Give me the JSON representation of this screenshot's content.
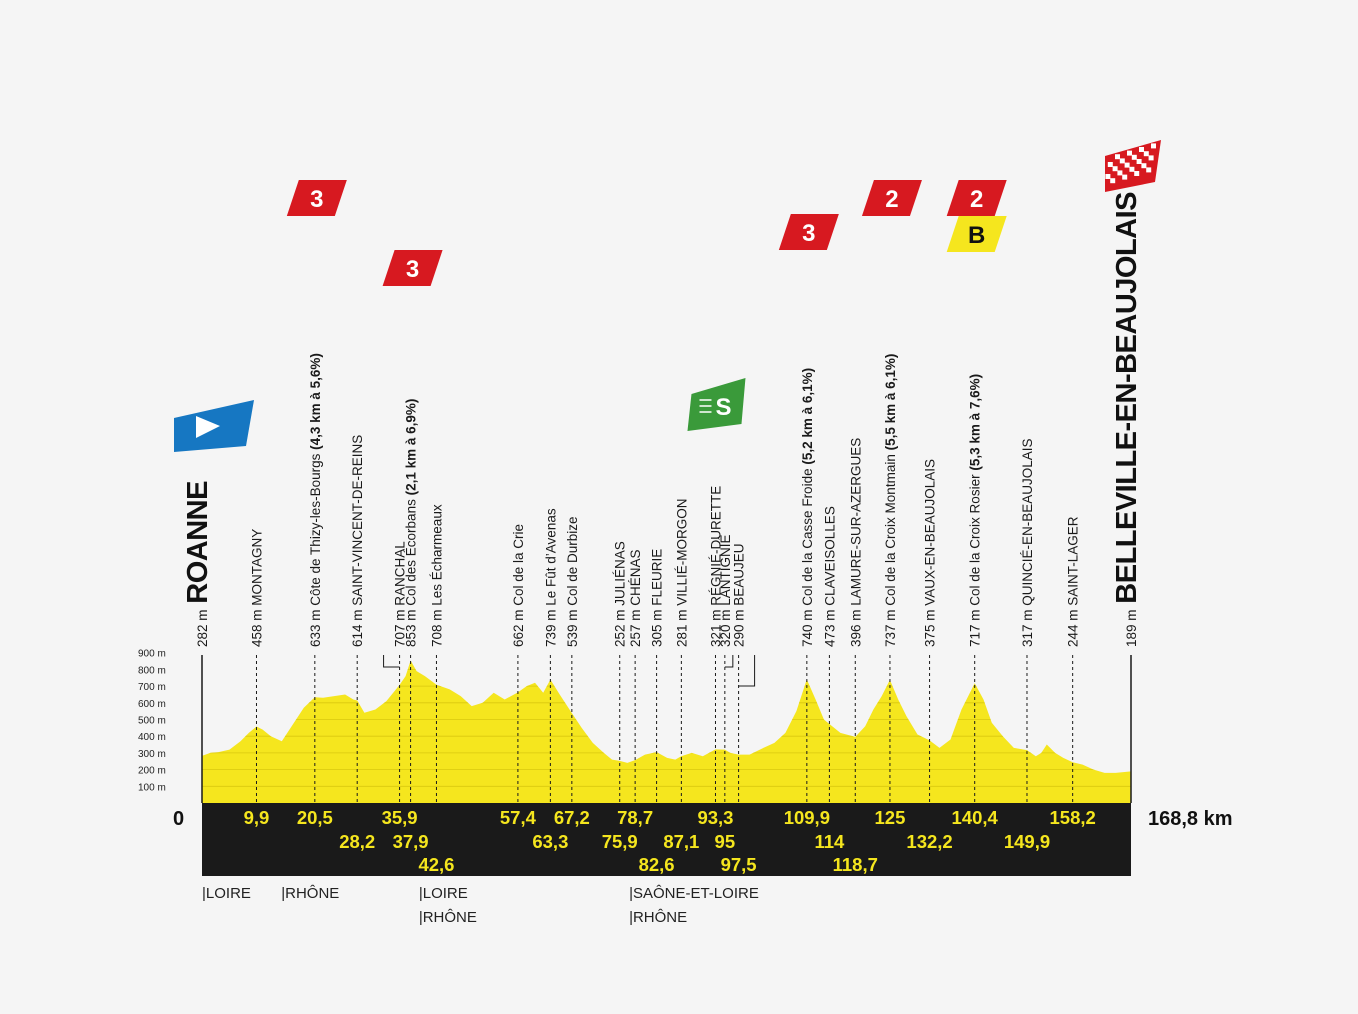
{
  "chart_data": {
    "type": "area",
    "title": "",
    "xlabel": "",
    "ylabel": "",
    "total_distance_label": "168,8 km",
    "zero_label": "0",
    "x_range_km": [
      0,
      168.8
    ],
    "ylim_m": [
      0,
      900
    ],
    "y_ticks": [
      "100 m",
      "200 m",
      "300 m",
      "400 m",
      "500 m",
      "600 m",
      "700 m",
      "800 m",
      "900 m"
    ],
    "fill_color": "#f5e61e",
    "profile": {
      "x": [
        0,
        1.5,
        3,
        5,
        7,
        8.5,
        9.9,
        11,
        12.5,
        14.5,
        16.5,
        18.5,
        20.5,
        22,
        24,
        26,
        27.5,
        28.2,
        29.5,
        31.5,
        33.5,
        35.9,
        37,
        37.9,
        39,
        40.5,
        42.6,
        45,
        47,
        49,
        51,
        53,
        55,
        57.4,
        59,
        60.5,
        62,
        63.3,
        65,
        67.2,
        69,
        71,
        73,
        74.5,
        75.9,
        77.3,
        78.7,
        80.5,
        82.6,
        84.5,
        86,
        87.1,
        89,
        91,
        93.3,
        95,
        96,
        97.5,
        99.5,
        102,
        104,
        106,
        108,
        109.9,
        111.5,
        113,
        114,
        116,
        118.7,
        120.5,
        122,
        123.5,
        125,
        126.5,
        128,
        130,
        132.2,
        134,
        136,
        138,
        140.4,
        142,
        143.5,
        145.5,
        147.5,
        149.9,
        151.5,
        152.5,
        153.5,
        155,
        156.5,
        158.2,
        160,
        162,
        164,
        166,
        168.8
      ],
      "elevation": [
        282,
        300,
        305,
        320,
        370,
        420,
        458,
        440,
        400,
        370,
        470,
        570,
        633,
        630,
        640,
        650,
        620,
        614,
        540,
        560,
        610,
        707,
        760,
        853,
        790,
        760,
        708,
        680,
        640,
        580,
        600,
        660,
        620,
        662,
        700,
        720,
        660,
        739,
        650,
        539,
        450,
        360,
        300,
        260,
        252,
        240,
        257,
        290,
        305,
        270,
        260,
        281,
        300,
        280,
        321,
        320,
        300,
        290,
        290,
        330,
        360,
        420,
        550,
        740,
        620,
        500,
        473,
        420,
        396,
        460,
        560,
        640,
        737,
        620,
        520,
        410,
        375,
        330,
        380,
        560,
        717,
        620,
        480,
        400,
        330,
        317,
        280,
        300,
        350,
        300,
        270,
        244,
        230,
        200,
        180,
        180,
        189
      ]
    },
    "points": [
      {
        "km": "",
        "label": "282 m ",
        "name": "ROANNE",
        "bold": true
      },
      {
        "km": "9,9",
        "label": "458 m MONTAGNY"
      },
      {
        "km": "20,5",
        "label": "633 m Côte de Thizy-les-Bourgs ",
        "extra": "(4,3 km à 5,6%)"
      },
      {
        "km": "28,2",
        "label": "614 m SAINT-VINCENT-DE-REINS"
      },
      {
        "km": "35,9",
        "label": "707 m RANCHAL"
      },
      {
        "km": "37,9",
        "label": "853 m Col des Écorbans ",
        "extra": "(2,1 km à 6,9%)"
      },
      {
        "km": "42,6",
        "label": "708 m Les Écharmeaux"
      },
      {
        "km": "57,4",
        "label": "662 m Col de la Crie"
      },
      {
        "km": "63,3",
        "label": "739 m Le Fût d’Avenas"
      },
      {
        "km": "67,2",
        "label": "539 m Col de Durbize"
      },
      {
        "km": "75,9",
        "label": "252 m JULIÉNAS"
      },
      {
        "km": "78,7",
        "label": "257 m CHÉNAS"
      },
      {
        "km": "82,6",
        "label": "305 m FLEURIE"
      },
      {
        "km": "87,1",
        "label": "281 m VILLIÉ-MORGON"
      },
      {
        "km": "93,3",
        "label": "321 m RÉGNIÉ-DURETTE"
      },
      {
        "km": "95",
        "label": "320 m LANTIGNIÉ"
      },
      {
        "km": "97,5",
        "label": "290 m BEAUJEU"
      },
      {
        "km": "109,9",
        "label": "740 m Col de la Casse Froide ",
        "extra": "(5,2 km à 6,1%)"
      },
      {
        "km": "114",
        "label": "473 m CLAVEISOLLES"
      },
      {
        "km": "118,7",
        "label": "396 m LAMURE-SUR-AZERGUES"
      },
      {
        "km": "125",
        "label": "737 m Col de la Croix Montmain ",
        "extra": "(5,5 km à 6,1%)"
      },
      {
        "km": "132,2",
        "label": "375 m VAUX-EN-BEAUJOLAIS"
      },
      {
        "km": "140,4",
        "label": "717 m Col de la Croix Rosier ",
        "extra": "(5,3 km à 7,6%)"
      },
      {
        "km": "149,9",
        "label": "317 m QUINCIÉ-EN-BEAUJOLAIS"
      },
      {
        "km": "158,2",
        "label": "244 m SAINT-LAGER"
      },
      {
        "km": "",
        "label": "189 m ",
        "name": "BELLEVILLE-EN-BEAUJOLAIS",
        "bold": true
      }
    ],
    "climb_badges": [
      {
        "text": "3",
        "color": "#d71920",
        "km": 20.5
      },
      {
        "text": "3",
        "color": "#d71920",
        "km": 37.9
      },
      {
        "text": "3",
        "color": "#d71920",
        "km": 109.9
      },
      {
        "text": "2",
        "color": "#d71920",
        "km": 125
      },
      {
        "text": "2",
        "color": "#d71920",
        "km": 140.4
      }
    ],
    "bonus_badge": {
      "text": "B",
      "color": "#f5e61e",
      "km": 140.4
    },
    "sprint_badge": {
      "text": "S",
      "color": "#3a9a3a",
      "km": 93.3
    },
    "start_flag_color": "#1677c2",
    "finish_flag_color": "#d71920",
    "departments": [
      {
        "label": "|LOIRE",
        "km": 0,
        "row": 0
      },
      {
        "label": "|RHÔNE",
        "km": 14.4,
        "row": 0
      },
      {
        "label": "|LOIRE",
        "km": 39.4,
        "row": 0
      },
      {
        "label": "|RHÔNE",
        "km": 39.4,
        "row": 1
      },
      {
        "label": "|SAÔNE-ET-LOIRE",
        "km": 77.6,
        "row": 0
      },
      {
        "label": "|RHÔNE",
        "km": 77.6,
        "row": 1
      }
    ]
  }
}
